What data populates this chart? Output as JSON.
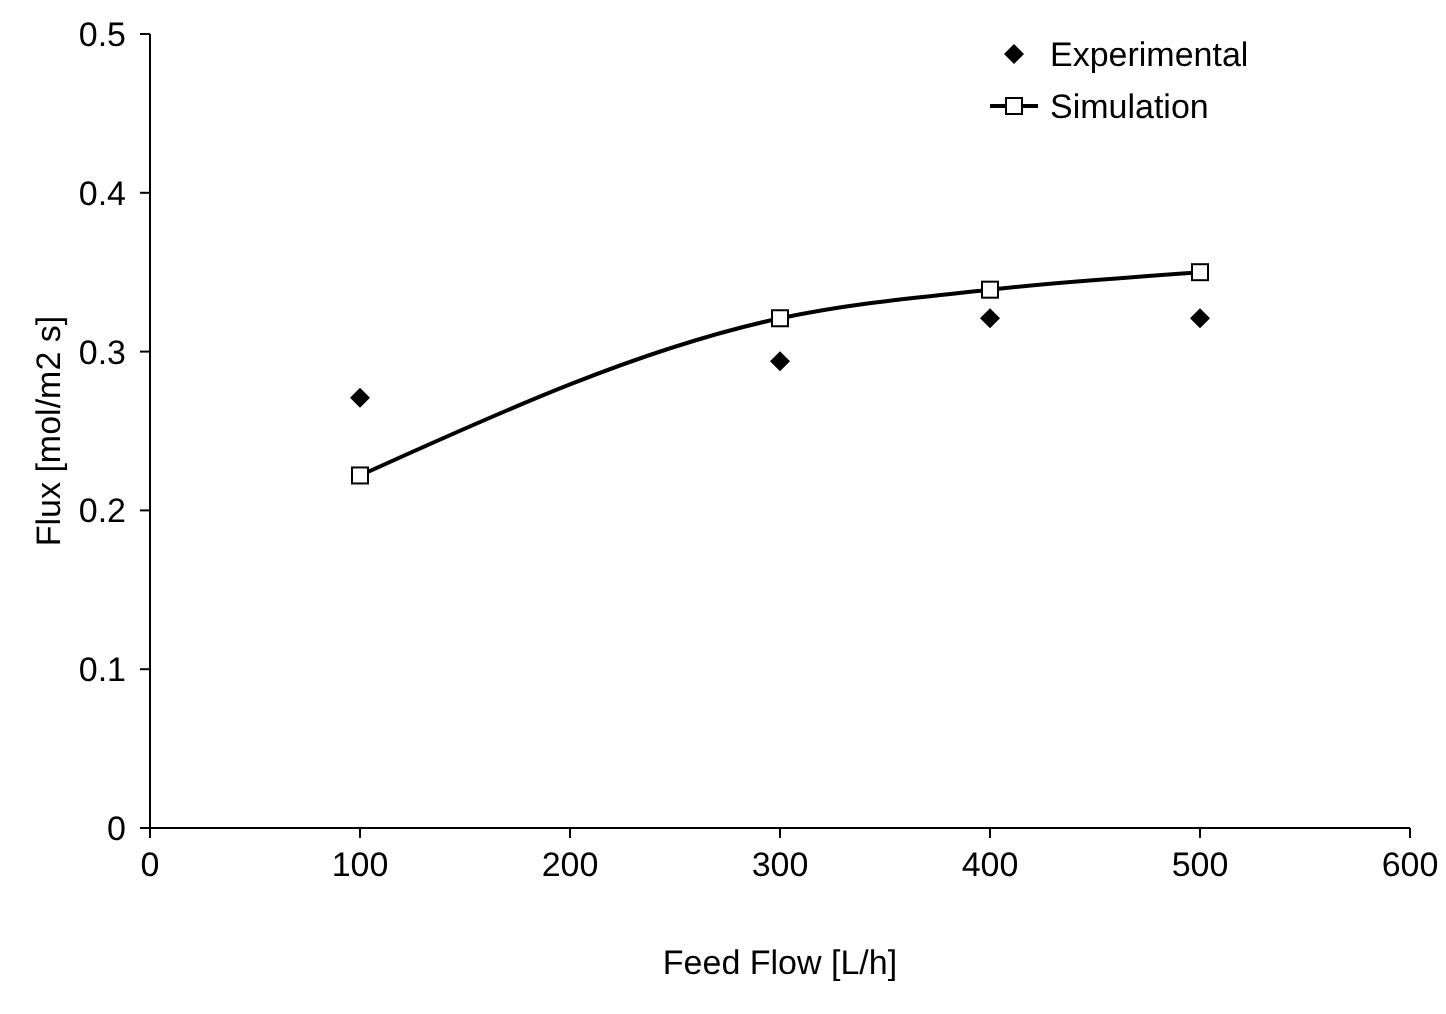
{
  "chart_data": {
    "type": "line",
    "xlabel": "Feed Flow [L/h]",
    "ylabel": "Flux [mol/m2 s]",
    "xlim": [
      0,
      600
    ],
    "xticks": [
      0,
      100,
      200,
      300,
      400,
      500,
      600
    ],
    "ylim": [
      0,
      0.5
    ],
    "yticks": [
      0,
      0.1,
      0.2,
      0.3,
      0.4,
      0.5
    ],
    "grid": false,
    "legend": "top right",
    "series": [
      {
        "name": "Experimental",
        "type": "scatter",
        "marker": "diamond",
        "color": "#000000",
        "x": [
          100,
          300,
          400,
          500
        ],
        "values": [
          0.271,
          0.294,
          0.321,
          0.321
        ]
      },
      {
        "name": "Simulation",
        "type": "line",
        "marker": "square",
        "line_style": "solid",
        "color": "#000000",
        "x": [
          100,
          300,
          400,
          500
        ],
        "values": [
          0.222,
          0.321,
          0.339,
          0.35
        ]
      }
    ]
  }
}
